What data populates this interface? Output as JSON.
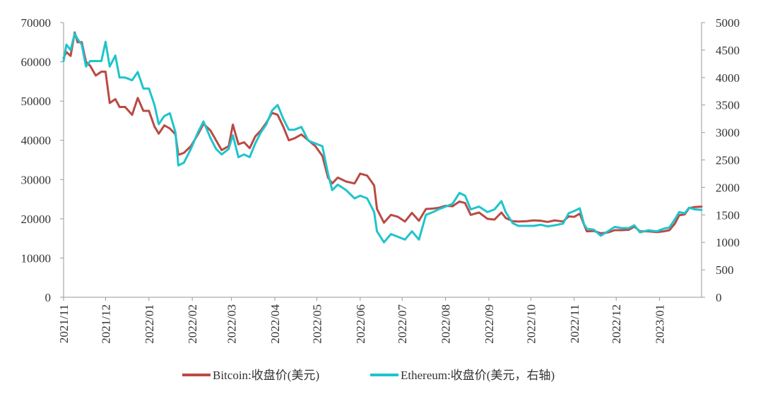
{
  "chart_data": {
    "type": "line",
    "title": "",
    "xlabel": "",
    "ylabel_left": "",
    "ylabel_right": "",
    "xlim": [
      "2021-11-01",
      "2023-01-31"
    ],
    "ylim_left": [
      0,
      70000
    ],
    "ylim_right": [
      0,
      5000
    ],
    "y_ticks_left": [
      0,
      10000,
      20000,
      30000,
      40000,
      50000,
      60000,
      70000
    ],
    "y_ticks_right": [
      0,
      500,
      1000,
      1500,
      2000,
      2500,
      3000,
      3500,
      4000,
      4500,
      5000
    ],
    "x_ticks": [
      "2021/11",
      "2021/12",
      "2022/01",
      "2022/02",
      "2022/03",
      "2022/04",
      "2022/05",
      "2022/06",
      "2022/07",
      "2022/08",
      "2022/09",
      "2022/10",
      "2022/11",
      "2022/12",
      "2023/01"
    ],
    "x_tick_dates": [
      "2021-11-01",
      "2021-12-01",
      "2022-01-01",
      "2022-02-01",
      "2022-03-01",
      "2022-04-01",
      "2022-05-01",
      "2022-06-01",
      "2022-07-01",
      "2022-08-01",
      "2022-09-01",
      "2022-10-01",
      "2022-11-01",
      "2022-12-01",
      "2023-01-01"
    ],
    "grid": false,
    "legend_position": "bottom",
    "series": [
      {
        "name": "Bitcoin:收盘价(美元)",
        "axis": "left",
        "color": "#b94a45",
        "points": [
          [
            "2021-11-01",
            61000
          ],
          [
            "2021-11-03",
            62500
          ],
          [
            "2021-11-06",
            61500
          ],
          [
            "2021-11-09",
            67500
          ],
          [
            "2021-11-11",
            65000
          ],
          [
            "2021-11-14",
            65000
          ],
          [
            "2021-11-17",
            60000
          ],
          [
            "2021-11-20",
            59000
          ],
          [
            "2021-11-24",
            56500
          ],
          [
            "2021-11-28",
            57500
          ],
          [
            "2021-12-01",
            57500
          ],
          [
            "2021-12-04",
            49500
          ],
          [
            "2021-12-08",
            50500
          ],
          [
            "2021-12-11",
            48500
          ],
          [
            "2021-12-15",
            48500
          ],
          [
            "2021-12-20",
            46500
          ],
          [
            "2021-12-24",
            50800
          ],
          [
            "2021-12-28",
            47500
          ],
          [
            "2022-01-01",
            47500
          ],
          [
            "2022-01-05",
            43500
          ],
          [
            "2022-01-08",
            41700
          ],
          [
            "2022-01-12",
            43800
          ],
          [
            "2022-01-16",
            43000
          ],
          [
            "2022-01-20",
            41500
          ],
          [
            "2022-01-22",
            36300
          ],
          [
            "2022-01-26",
            36800
          ],
          [
            "2022-01-31",
            38500
          ],
          [
            "2022-02-05",
            41500
          ],
          [
            "2022-02-09",
            44200
          ],
          [
            "2022-02-14",
            42500
          ],
          [
            "2022-02-18",
            40000
          ],
          [
            "2022-02-22",
            37500
          ],
          [
            "2022-02-27",
            38500
          ],
          [
            "2022-03-02",
            44000
          ],
          [
            "2022-03-06",
            39000
          ],
          [
            "2022-03-10",
            39500
          ],
          [
            "2022-03-14",
            38000
          ],
          [
            "2022-03-18",
            41000
          ],
          [
            "2022-03-22",
            42500
          ],
          [
            "2022-03-26",
            44500
          ],
          [
            "2022-03-30",
            47000
          ],
          [
            "2022-04-03",
            46500
          ],
          [
            "2022-04-07",
            43500
          ],
          [
            "2022-04-11",
            40000
          ],
          [
            "2022-04-15",
            40500
          ],
          [
            "2022-04-20",
            41500
          ],
          [
            "2022-04-25",
            40000
          ],
          [
            "2022-04-30",
            38500
          ],
          [
            "2022-05-05",
            36000
          ],
          [
            "2022-05-09",
            30500
          ],
          [
            "2022-05-12",
            29000
          ],
          [
            "2022-05-16",
            30500
          ],
          [
            "2022-05-22",
            29500
          ],
          [
            "2022-05-28",
            29000
          ],
          [
            "2022-06-01",
            31500
          ],
          [
            "2022-06-06",
            31000
          ],
          [
            "2022-06-11",
            28500
          ],
          [
            "2022-06-13",
            22500
          ],
          [
            "2022-06-18",
            19000
          ],
          [
            "2022-06-23",
            21000
          ],
          [
            "2022-06-28",
            20500
          ],
          [
            "2022-07-03",
            19300
          ],
          [
            "2022-07-08",
            21500
          ],
          [
            "2022-07-13",
            19500
          ],
          [
            "2022-07-18",
            22500
          ],
          [
            "2022-07-23",
            22600
          ],
          [
            "2022-07-27",
            22800
          ],
          [
            "2022-08-01",
            23300
          ],
          [
            "2022-08-06",
            23200
          ],
          [
            "2022-08-11",
            24400
          ],
          [
            "2022-08-15",
            24000
          ],
          [
            "2022-08-19",
            21000
          ],
          [
            "2022-08-25",
            21600
          ],
          [
            "2022-08-31",
            20000
          ],
          [
            "2022-09-05",
            19800
          ],
          [
            "2022-09-10",
            21600
          ],
          [
            "2022-09-13",
            20200
          ],
          [
            "2022-09-18",
            19400
          ],
          [
            "2022-09-22",
            19300
          ],
          [
            "2022-09-28",
            19400
          ],
          [
            "2022-10-03",
            19600
          ],
          [
            "2022-10-08",
            19500
          ],
          [
            "2022-10-13",
            19200
          ],
          [
            "2022-10-18",
            19600
          ],
          [
            "2022-10-24",
            19300
          ],
          [
            "2022-10-28",
            20600
          ],
          [
            "2022-11-01",
            20500
          ],
          [
            "2022-11-05",
            21300
          ],
          [
            "2022-11-08",
            18500
          ],
          [
            "2022-11-10",
            16800
          ],
          [
            "2022-11-15",
            16900
          ],
          [
            "2022-11-20",
            16300
          ],
          [
            "2022-11-25",
            16500
          ],
          [
            "2022-11-30",
            17100
          ],
          [
            "2022-12-05",
            17100
          ],
          [
            "2022-12-10",
            17200
          ],
          [
            "2022-12-14",
            18000
          ],
          [
            "2022-12-18",
            16800
          ],
          [
            "2022-12-24",
            16800
          ],
          [
            "2022-12-30",
            16600
          ],
          [
            "2023-01-04",
            16800
          ],
          [
            "2023-01-08",
            17100
          ],
          [
            "2023-01-12",
            18800
          ],
          [
            "2023-01-15",
            20900
          ],
          [
            "2023-01-19",
            21100
          ],
          [
            "2023-01-22",
            22700
          ],
          [
            "2023-01-26",
            23000
          ],
          [
            "2023-01-31",
            23100
          ]
        ]
      },
      {
        "name": "Ethereum:收盘价(美元，右轴)",
        "axis": "right",
        "color": "#1fc4cc",
        "points": [
          [
            "2021-11-01",
            4300
          ],
          [
            "2021-11-03",
            4600
          ],
          [
            "2021-11-06",
            4500
          ],
          [
            "2021-11-09",
            4800
          ],
          [
            "2021-11-11",
            4700
          ],
          [
            "2021-11-14",
            4600
          ],
          [
            "2021-11-17",
            4200
          ],
          [
            "2021-11-20",
            4300
          ],
          [
            "2021-11-24",
            4300
          ],
          [
            "2021-11-28",
            4300
          ],
          [
            "2021-12-01",
            4650
          ],
          [
            "2021-12-04",
            4200
          ],
          [
            "2021-12-08",
            4400
          ],
          [
            "2021-12-11",
            4000
          ],
          [
            "2021-12-15",
            4000
          ],
          [
            "2021-12-20",
            3950
          ],
          [
            "2021-12-24",
            4100
          ],
          [
            "2021-12-28",
            3800
          ],
          [
            "2022-01-01",
            3800
          ],
          [
            "2022-01-05",
            3500
          ],
          [
            "2022-01-08",
            3150
          ],
          [
            "2022-01-12",
            3300
          ],
          [
            "2022-01-16",
            3350
          ],
          [
            "2022-01-20",
            3000
          ],
          [
            "2022-01-22",
            2400
          ],
          [
            "2022-01-26",
            2450
          ],
          [
            "2022-01-31",
            2700
          ],
          [
            "2022-02-05",
            3000
          ],
          [
            "2022-02-09",
            3200
          ],
          [
            "2022-02-14",
            2900
          ],
          [
            "2022-02-18",
            2700
          ],
          [
            "2022-02-22",
            2600
          ],
          [
            "2022-02-27",
            2700
          ],
          [
            "2022-03-02",
            2950
          ],
          [
            "2022-03-06",
            2550
          ],
          [
            "2022-03-10",
            2600
          ],
          [
            "2022-03-14",
            2550
          ],
          [
            "2022-03-18",
            2800
          ],
          [
            "2022-03-22",
            3000
          ],
          [
            "2022-03-26",
            3150
          ],
          [
            "2022-03-30",
            3400
          ],
          [
            "2022-04-03",
            3500
          ],
          [
            "2022-04-07",
            3250
          ],
          [
            "2022-04-11",
            3050
          ],
          [
            "2022-04-15",
            3050
          ],
          [
            "2022-04-20",
            3100
          ],
          [
            "2022-04-25",
            2850
          ],
          [
            "2022-04-30",
            2800
          ],
          [
            "2022-05-05",
            2750
          ],
          [
            "2022-05-09",
            2250
          ],
          [
            "2022-05-12",
            1950
          ],
          [
            "2022-05-16",
            2050
          ],
          [
            "2022-05-22",
            1950
          ],
          [
            "2022-05-28",
            1800
          ],
          [
            "2022-06-01",
            1850
          ],
          [
            "2022-06-06",
            1800
          ],
          [
            "2022-06-11",
            1550
          ],
          [
            "2022-06-13",
            1200
          ],
          [
            "2022-06-18",
            1000
          ],
          [
            "2022-06-23",
            1150
          ],
          [
            "2022-06-28",
            1100
          ],
          [
            "2022-07-03",
            1050
          ],
          [
            "2022-07-08",
            1200
          ],
          [
            "2022-07-13",
            1050
          ],
          [
            "2022-07-18",
            1500
          ],
          [
            "2022-07-23",
            1550
          ],
          [
            "2022-07-27",
            1600
          ],
          [
            "2022-08-01",
            1650
          ],
          [
            "2022-08-06",
            1700
          ],
          [
            "2022-08-11",
            1900
          ],
          [
            "2022-08-15",
            1850
          ],
          [
            "2022-08-19",
            1600
          ],
          [
            "2022-08-25",
            1650
          ],
          [
            "2022-08-31",
            1550
          ],
          [
            "2022-09-05",
            1600
          ],
          [
            "2022-09-10",
            1750
          ],
          [
            "2022-09-13",
            1550
          ],
          [
            "2022-09-18",
            1350
          ],
          [
            "2022-09-22",
            1300
          ],
          [
            "2022-09-28",
            1300
          ],
          [
            "2022-10-03",
            1300
          ],
          [
            "2022-10-08",
            1320
          ],
          [
            "2022-10-13",
            1290
          ],
          [
            "2022-10-18",
            1310
          ],
          [
            "2022-10-24",
            1340
          ],
          [
            "2022-10-28",
            1530
          ],
          [
            "2022-11-01",
            1570
          ],
          [
            "2022-11-05",
            1620
          ],
          [
            "2022-11-08",
            1330
          ],
          [
            "2022-11-10",
            1250
          ],
          [
            "2022-11-15",
            1230
          ],
          [
            "2022-11-20",
            1120
          ],
          [
            "2022-11-25",
            1200
          ],
          [
            "2022-11-30",
            1280
          ],
          [
            "2022-12-05",
            1260
          ],
          [
            "2022-12-10",
            1260
          ],
          [
            "2022-12-14",
            1310
          ],
          [
            "2022-12-18",
            1180
          ],
          [
            "2022-12-24",
            1220
          ],
          [
            "2022-12-30",
            1200
          ],
          [
            "2023-01-04",
            1250
          ],
          [
            "2023-01-08",
            1270
          ],
          [
            "2023-01-12",
            1420
          ],
          [
            "2023-01-15",
            1550
          ],
          [
            "2023-01-19",
            1530
          ],
          [
            "2023-01-22",
            1630
          ],
          [
            "2023-01-26",
            1600
          ],
          [
            "2023-01-31",
            1590
          ]
        ]
      }
    ]
  }
}
